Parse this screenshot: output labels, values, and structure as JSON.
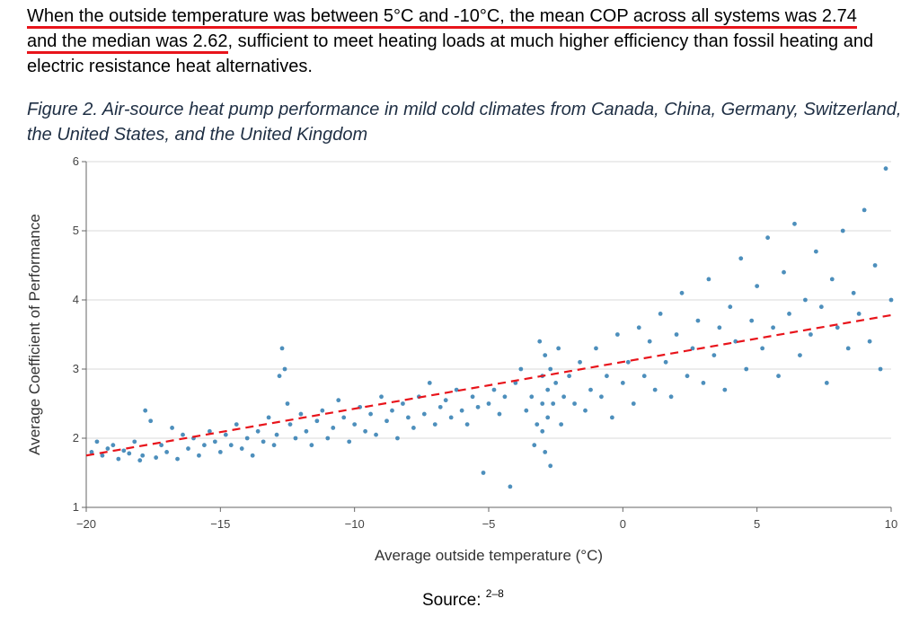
{
  "paragraph": {
    "highlight_1": "When the outside temperature was between 5°C and -10°C, the mean COP across all systems was 2.74",
    "highlight_2": "and the median was 2.62",
    "rest": ", sufficient to meet heating loads at much higher efficiency than fossil heating and electric resistance heat alternatives."
  },
  "caption": "Figure 2. Air-source heat pump performance in mild cold climates from Canada, China, Germany, Switzerland, the United States, and the United Kingdom",
  "source": {
    "label": "Source:",
    "refs": "2–8"
  },
  "chart_data": {
    "type": "scatter",
    "xlabel": "Average outside temperature (°C)",
    "ylabel": "Average Coefficient of Performance",
    "xlim": [
      -20,
      10
    ],
    "ylim": [
      1,
      6
    ],
    "xticks": [
      -20,
      -15,
      -10,
      -5,
      0,
      5,
      10
    ],
    "yticks": [
      1,
      2,
      3,
      4,
      5,
      6
    ],
    "grid": "horizontal",
    "colors": {
      "points": "#2e7bb0",
      "trend": "#e8141b",
      "grid": "#d9d9d9"
    },
    "trend_line": {
      "style": "dashed",
      "x": [
        -20,
        10
      ],
      "y": [
        1.75,
        3.78
      ]
    },
    "points": [
      [
        -19.8,
        1.8
      ],
      [
        -19.6,
        1.95
      ],
      [
        -19.4,
        1.75
      ],
      [
        -19.2,
        1.85
      ],
      [
        -19.0,
        1.9
      ],
      [
        -18.8,
        1.7
      ],
      [
        -18.6,
        1.82
      ],
      [
        -18.4,
        1.78
      ],
      [
        -18.2,
        1.95
      ],
      [
        -18.0,
        1.68
      ],
      [
        -17.9,
        1.75
      ],
      [
        -17.8,
        2.4
      ],
      [
        -17.6,
        2.25
      ],
      [
        -17.4,
        1.72
      ],
      [
        -17.2,
        1.9
      ],
      [
        -17.0,
        1.8
      ],
      [
        -16.8,
        2.15
      ],
      [
        -16.6,
        1.7
      ],
      [
        -16.4,
        2.05
      ],
      [
        -16.2,
        1.85
      ],
      [
        -16.0,
        2.0
      ],
      [
        -15.8,
        1.75
      ],
      [
        -15.6,
        1.9
      ],
      [
        -15.4,
        2.1
      ],
      [
        -15.2,
        1.95
      ],
      [
        -15.0,
        1.8
      ],
      [
        -14.8,
        2.05
      ],
      [
        -14.6,
        1.9
      ],
      [
        -14.4,
        2.2
      ],
      [
        -14.2,
        1.85
      ],
      [
        -14.0,
        2.0
      ],
      [
        -13.8,
        1.75
      ],
      [
        -13.6,
        2.1
      ],
      [
        -13.4,
        1.95
      ],
      [
        -13.2,
        2.3
      ],
      [
        -13.0,
        1.9
      ],
      [
        -12.9,
        2.05
      ],
      [
        -12.8,
        2.9
      ],
      [
        -12.7,
        3.3
      ],
      [
        -12.6,
        3.0
      ],
      [
        -12.5,
        2.5
      ],
      [
        -12.4,
        2.2
      ],
      [
        -12.2,
        2.0
      ],
      [
        -12.0,
        2.35
      ],
      [
        -11.8,
        2.1
      ],
      [
        -11.6,
        1.9
      ],
      [
        -11.4,
        2.25
      ],
      [
        -11.2,
        2.4
      ],
      [
        -11.0,
        2.0
      ],
      [
        -10.8,
        2.15
      ],
      [
        -10.6,
        2.55
      ],
      [
        -10.4,
        2.3
      ],
      [
        -10.2,
        1.95
      ],
      [
        -10.0,
        2.2
      ],
      [
        -9.8,
        2.45
      ],
      [
        -9.6,
        2.1
      ],
      [
        -9.4,
        2.35
      ],
      [
        -9.2,
        2.05
      ],
      [
        -9.0,
        2.6
      ],
      [
        -8.8,
        2.25
      ],
      [
        -8.6,
        2.4
      ],
      [
        -8.4,
        2.0
      ],
      [
        -8.2,
        2.5
      ],
      [
        -8.0,
        2.3
      ],
      [
        -7.8,
        2.15
      ],
      [
        -7.6,
        2.6
      ],
      [
        -7.4,
        2.35
      ],
      [
        -7.2,
        2.8
      ],
      [
        -7.0,
        2.2
      ],
      [
        -6.8,
        2.45
      ],
      [
        -6.6,
        2.55
      ],
      [
        -6.4,
        2.3
      ],
      [
        -6.2,
        2.7
      ],
      [
        -6.0,
        2.4
      ],
      [
        -5.8,
        2.2
      ],
      [
        -5.6,
        2.6
      ],
      [
        -5.4,
        2.45
      ],
      [
        -5.2,
        1.5
      ],
      [
        -5.0,
        2.5
      ],
      [
        -4.8,
        2.7
      ],
      [
        -4.6,
        2.35
      ],
      [
        -4.4,
        2.6
      ],
      [
        -4.2,
        1.3
      ],
      [
        -4.0,
        2.8
      ],
      [
        -3.8,
        3.0
      ],
      [
        -3.6,
        2.4
      ],
      [
        -3.4,
        2.6
      ],
      [
        -3.3,
        1.9
      ],
      [
        -3.2,
        2.2
      ],
      [
        -3.1,
        3.4
      ],
      [
        -3.0,
        2.5
      ],
      [
        -3.0,
        2.9
      ],
      [
        -3.0,
        2.1
      ],
      [
        -2.9,
        3.2
      ],
      [
        -2.9,
        1.8
      ],
      [
        -2.8,
        2.7
      ],
      [
        -2.8,
        2.3
      ],
      [
        -2.7,
        3.0
      ],
      [
        -2.7,
        1.6
      ],
      [
        -2.6,
        2.5
      ],
      [
        -2.5,
        2.8
      ],
      [
        -2.4,
        3.3
      ],
      [
        -2.3,
        2.2
      ],
      [
        -2.2,
        2.6
      ],
      [
        -2.0,
        2.9
      ],
      [
        -1.8,
        2.5
      ],
      [
        -1.6,
        3.1
      ],
      [
        -1.4,
        2.4
      ],
      [
        -1.2,
        2.7
      ],
      [
        -1.0,
        3.3
      ],
      [
        -0.8,
        2.6
      ],
      [
        -0.6,
        2.9
      ],
      [
        -0.4,
        2.3
      ],
      [
        -0.2,
        3.5
      ],
      [
        0.0,
        2.8
      ],
      [
        0.2,
        3.1
      ],
      [
        0.4,
        2.5
      ],
      [
        0.6,
        3.6
      ],
      [
        0.8,
        2.9
      ],
      [
        1.0,
        3.4
      ],
      [
        1.2,
        2.7
      ],
      [
        1.4,
        3.8
      ],
      [
        1.6,
        3.1
      ],
      [
        1.8,
        2.6
      ],
      [
        2.0,
        3.5
      ],
      [
        2.2,
        4.1
      ],
      [
        2.4,
        2.9
      ],
      [
        2.6,
        3.3
      ],
      [
        2.8,
        3.7
      ],
      [
        3.0,
        2.8
      ],
      [
        3.2,
        4.3
      ],
      [
        3.4,
        3.2
      ],
      [
        3.6,
        3.6
      ],
      [
        3.8,
        2.7
      ],
      [
        4.0,
        3.9
      ],
      [
        4.2,
        3.4
      ],
      [
        4.4,
        4.6
      ],
      [
        4.6,
        3.0
      ],
      [
        4.8,
        3.7
      ],
      [
        5.0,
        4.2
      ],
      [
        5.2,
        3.3
      ],
      [
        5.4,
        4.9
      ],
      [
        5.6,
        3.6
      ],
      [
        5.8,
        2.9
      ],
      [
        6.0,
        4.4
      ],
      [
        6.2,
        3.8
      ],
      [
        6.4,
        5.1
      ],
      [
        6.6,
        3.2
      ],
      [
        6.8,
        4.0
      ],
      [
        7.0,
        3.5
      ],
      [
        7.2,
        4.7
      ],
      [
        7.4,
        3.9
      ],
      [
        7.6,
        2.8
      ],
      [
        7.8,
        4.3
      ],
      [
        8.0,
        3.6
      ],
      [
        8.2,
        5.0
      ],
      [
        8.4,
        3.3
      ],
      [
        8.6,
        4.1
      ],
      [
        8.8,
        3.8
      ],
      [
        9.0,
        5.3
      ],
      [
        9.2,
        3.4
      ],
      [
        9.4,
        4.5
      ],
      [
        9.6,
        3.0
      ],
      [
        9.8,
        5.9
      ],
      [
        10.0,
        4.0
      ]
    ]
  }
}
